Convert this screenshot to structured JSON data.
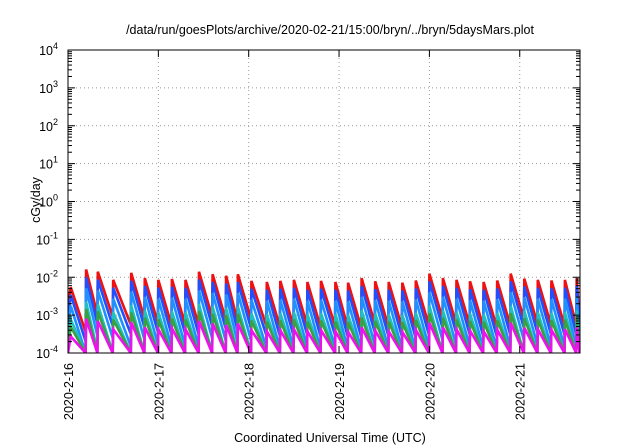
{
  "chart_data": {
    "type": "line",
    "title": "/data/run/goesPlots/archive/2020-02-21/15:00/bryn/../bryn/5daysMars.plot",
    "xlabel": "Coordinated Universal Time (UTC)",
    "ylabel": "cGy/day",
    "yscale": "log",
    "ylim": [
      0.0001,
      10000
    ],
    "xlim": [
      "2020-02-16",
      "2020-02-21T16:00"
    ],
    "x_ticks": [
      "2020-2-16",
      "2020-2-17",
      "2020-2-18",
      "2020-2-19",
      "2020-2-20",
      "2020-2-21"
    ],
    "y_ticks": [
      {
        "base": "10",
        "exp": "-4"
      },
      {
        "base": "10",
        "exp": "-3"
      },
      {
        "base": "10",
        "exp": "-2"
      },
      {
        "base": "10",
        "exp": "-1"
      },
      {
        "base": "10",
        "exp": "0"
      },
      {
        "base": "10",
        "exp": "1"
      },
      {
        "base": "10",
        "exp": "2"
      },
      {
        "base": "10",
        "exp": "3"
      },
      {
        "base": "10",
        "exp": "4"
      }
    ],
    "grid": true,
    "series": [
      {
        "color": "#ee1111",
        "scale": 1.0,
        "amp": 1.15
      },
      {
        "color": "#1f4fff",
        "scale": 0.62,
        "amp": 1.25
      },
      {
        "color": "#1e90ff",
        "scale": 0.32,
        "amp": 1.35
      },
      {
        "color": "#20c0c0",
        "scale": 0.14,
        "amp": 1.45
      },
      {
        "color": "#3aa040",
        "scale": 0.09,
        "amp": 1.55
      },
      {
        "color": "#ee11ee",
        "scale": 0.05,
        "amp": 1.7
      }
    ],
    "peaks": [
      {
        "t": 0.03,
        "v": 0.0055
      },
      {
        "t": 0.2,
        "v": 0.016
      },
      {
        "t": 0.33,
        "v": 0.014
      },
      {
        "t": 0.5,
        "v": 0.0085
      },
      {
        "t": 0.7,
        "v": 0.013
      },
      {
        "t": 0.85,
        "v": 0.0095
      },
      {
        "t": 1.0,
        "v": 0.0085
      },
      {
        "t": 1.15,
        "v": 0.009
      },
      {
        "t": 1.3,
        "v": 0.0085
      },
      {
        "t": 1.45,
        "v": 0.014
      },
      {
        "t": 1.6,
        "v": 0.012
      },
      {
        "t": 1.75,
        "v": 0.011
      },
      {
        "t": 1.88,
        "v": 0.012
      },
      {
        "t": 2.03,
        "v": 0.008
      },
      {
        "t": 2.2,
        "v": 0.0075
      },
      {
        "t": 2.35,
        "v": 0.008
      },
      {
        "t": 2.5,
        "v": 0.0085
      },
      {
        "t": 2.65,
        "v": 0.0075
      },
      {
        "t": 2.8,
        "v": 0.008
      },
      {
        "t": 2.96,
        "v": 0.0075
      },
      {
        "t": 3.1,
        "v": 0.0072
      },
      {
        "t": 3.25,
        "v": 0.0095
      },
      {
        "t": 3.4,
        "v": 0.0078
      },
      {
        "t": 3.55,
        "v": 0.0075
      },
      {
        "t": 3.7,
        "v": 0.0072
      },
      {
        "t": 3.85,
        "v": 0.0082
      },
      {
        "t": 4.0,
        "v": 0.0125
      },
      {
        "t": 4.15,
        "v": 0.0095
      },
      {
        "t": 4.3,
        "v": 0.0085
      },
      {
        "t": 4.45,
        "v": 0.0078
      },
      {
        "t": 4.6,
        "v": 0.0075
      },
      {
        "t": 4.75,
        "v": 0.0082
      },
      {
        "t": 4.9,
        "v": 0.0125
      },
      {
        "t": 5.05,
        "v": 0.0092
      },
      {
        "t": 5.2,
        "v": 0.0085
      },
      {
        "t": 5.35,
        "v": 0.0082
      },
      {
        "t": 5.5,
        "v": 0.0085
      },
      {
        "t": 5.63,
        "v": 0.0095
      }
    ],
    "decay_factor": 0.075
  }
}
